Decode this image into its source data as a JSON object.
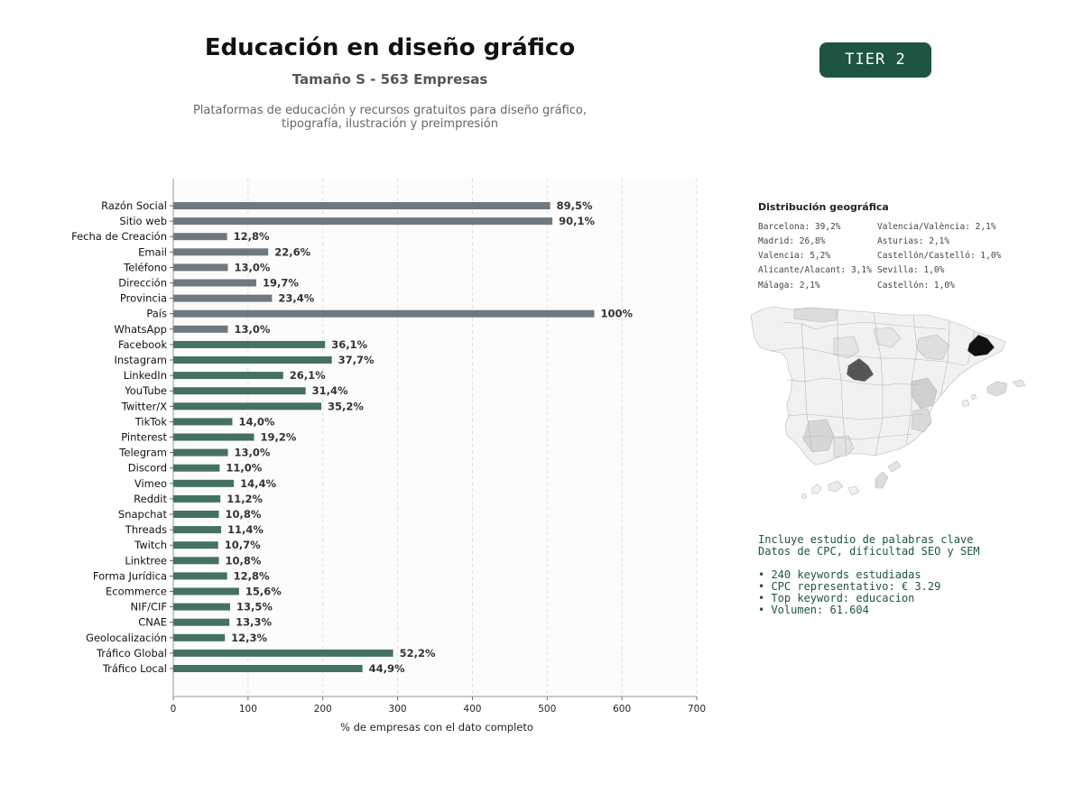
{
  "header": {
    "title": "Educación en diseño gráfico",
    "subtitle": "Tamaño S - 563 Empresas",
    "description_line1": "Plataformas de educación y recursos gratuitos para diseño gráfico,",
    "description_line2": "tipografía, ilustración y preimpresión",
    "tier": "TIER 2"
  },
  "colors": {
    "gray_bar": "#6e7880",
    "green_bar": "#45725f",
    "tier_bg": "#1e5540",
    "keyword_text": "#1e5540"
  },
  "chart_data": {
    "type": "bar",
    "orientation": "horizontal",
    "xlabel": "% de empresas con el dato completo",
    "xlim": [
      0,
      700
    ],
    "xticks": [
      "0",
      "100",
      "200",
      "300",
      "400",
      "500",
      "600",
      "700"
    ],
    "grid": "vertical dashed",
    "categories": [
      "Razón Social",
      "Sitio web",
      "Fecha de Creación",
      "Email",
      "Teléfono",
      "Dirección",
      "Provincia",
      "País",
      "WhatsApp",
      "Facebook",
      "Instagram",
      "LinkedIn",
      "YouTube",
      "Twitter/X",
      "TikTok",
      "Pinterest",
      "Telegram",
      "Discord",
      "Vimeo",
      "Reddit",
      "Snapchat",
      "Threads",
      "Twitch",
      "Linktree",
      "Forma Jurídica",
      "Ecommerce",
      "NIF/CIF",
      "CNAE",
      "Geolocalización",
      "Tráfico Global",
      "Tráfico Local"
    ],
    "values": [
      504,
      507,
      72,
      127,
      73,
      111,
      132,
      563,
      73,
      203,
      212,
      147,
      177,
      198,
      79,
      108,
      73,
      62,
      81,
      63,
      61,
      64,
      60,
      61,
      72,
      88,
      76,
      75,
      69,
      294,
      253
    ],
    "labels": [
      "89,5%",
      "90,1%",
      "12,8%",
      "22,6%",
      "13,0%",
      "19,7%",
      "23,4%",
      "100%",
      "13,0%",
      "36,1%",
      "37,7%",
      "26,1%",
      "31,4%",
      "35,2%",
      "14,0%",
      "19,2%",
      "13,0%",
      "11,0%",
      "14,4%",
      "11,2%",
      "10,8%",
      "11,4%",
      "10,7%",
      "10,8%",
      "12,8%",
      "15,6%",
      "13,5%",
      "13,3%",
      "12,3%",
      "52,2%",
      "44,9%"
    ],
    "bar_color_group": [
      "gray",
      "gray",
      "gray",
      "gray",
      "gray",
      "gray",
      "gray",
      "gray",
      "gray",
      "green",
      "green",
      "green",
      "green",
      "green",
      "green",
      "green",
      "green",
      "green",
      "green",
      "green",
      "green",
      "green",
      "green",
      "green",
      "green",
      "green",
      "green",
      "green",
      "green",
      "green",
      "green"
    ]
  },
  "geo": {
    "title": "Distribución geográfica",
    "col1": [
      "Barcelona: 39,2%",
      "Madrid: 26,8%",
      "Valencia: 5,2%",
      "Alicante/Alacant: 3,1%",
      "Málaga: 2,1%"
    ],
    "col2": [
      "Valencia/València: 2,1%",
      "Asturias: 2,1%",
      "Castellón/Castelló: 1,0%",
      "Sevilla: 1,0%",
      "Castellón: 1,0%"
    ]
  },
  "keywords": {
    "line1": "Incluye estudio de palabras clave",
    "line2": "Datos de CPC, dificultad SEO y SEM",
    "bullets": [
      "• 240 keywords estudiadas",
      "• CPC representativo: € 3.29",
      "• Top keyword: educacion",
      "• Volumen: 61.604"
    ]
  }
}
